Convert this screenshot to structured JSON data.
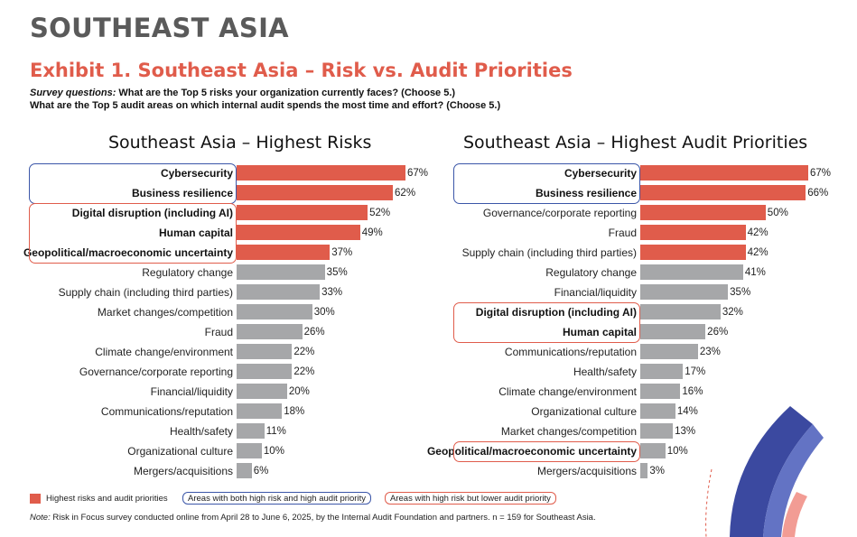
{
  "header": {
    "region": "SOUTHEAST ASIA",
    "exhibit_title": "Exhibit 1. Southeast Asia – Risk vs. Audit Priorities",
    "survey_lead": "Survey questions:",
    "survey_q1": " What are the Top 5 risks your organization currently faces? (Choose 5.)",
    "survey_q2": "What are the Top 5 audit areas on which internal audit spends the most time and effort? (Choose 5.)"
  },
  "colors": {
    "highlight": "#e05c4b",
    "default": "#a6a7a9",
    "blue_box": "#3b56a8",
    "red_box": "#e05c4b"
  },
  "chart_data": [
    {
      "type": "bar",
      "orientation": "horizontal",
      "title": "Southeast Asia – Highest Risks",
      "xlim": [
        0,
        67
      ],
      "unit": "%",
      "categories": [
        "Cybersecurity",
        "Business resilience",
        "Digital disruption (including AI)",
        "Human capital",
        "Geopolitical/macroeconomic uncertainty",
        "Regulatory change",
        "Supply chain (including third parties)",
        "Market changes/competition",
        "Fraud",
        "Climate change/environment",
        "Governance/corporate reporting",
        "Financial/liquidity",
        "Communications/reputation",
        "Health/safety",
        "Organizational culture",
        "Mergers/acquisitions"
      ],
      "values": [
        67,
        62,
        52,
        49,
        37,
        35,
        33,
        30,
        26,
        22,
        22,
        20,
        18,
        11,
        10,
        6
      ],
      "value_labels": [
        "67%",
        "62%",
        "52%",
        "49%",
        "37%",
        "35%",
        "33%",
        "30%",
        "26%",
        "22%",
        "22%",
        "20%",
        "18%",
        "11%",
        "10%",
        "6%"
      ],
      "highlighted": [
        true,
        true,
        true,
        true,
        true,
        false,
        false,
        false,
        false,
        false,
        false,
        false,
        false,
        false,
        false,
        false
      ],
      "bold": [
        true,
        true,
        true,
        true,
        true,
        false,
        false,
        false,
        false,
        false,
        false,
        false,
        false,
        false,
        false,
        false
      ],
      "boxes": [
        {
          "style": "blue",
          "from": 0,
          "to": 1
        },
        {
          "style": "red",
          "from": 2,
          "to": 4
        }
      ]
    },
    {
      "type": "bar",
      "orientation": "horizontal",
      "title": "Southeast Asia – Highest Audit Priorities",
      "xlim": [
        0,
        67
      ],
      "unit": "%",
      "categories": [
        "Cybersecurity",
        "Business resilience",
        "Governance/corporate reporting",
        "Fraud",
        "Supply chain (including third parties)",
        "Regulatory change",
        "Financial/liquidity",
        "Digital disruption (including AI)",
        "Human capital",
        "Communications/reputation",
        "Health/safety",
        "Climate change/environment",
        "Organizational culture",
        "Market changes/competition",
        "Geopolitical/macroeconomic uncertainty",
        "Mergers/acquisitions"
      ],
      "values": [
        67,
        66,
        50,
        42,
        42,
        41,
        35,
        32,
        26,
        23,
        17,
        16,
        14,
        13,
        10,
        3
      ],
      "value_labels": [
        "67%",
        "66%",
        "50%",
        "42%",
        "42%",
        "41%",
        "35%",
        "32%",
        "26%",
        "23%",
        "17%",
        "16%",
        "14%",
        "13%",
        "10%",
        "3%"
      ],
      "highlighted": [
        true,
        true,
        true,
        true,
        true,
        false,
        false,
        false,
        false,
        false,
        false,
        false,
        false,
        false,
        false,
        false
      ],
      "bold": [
        true,
        true,
        false,
        false,
        false,
        false,
        false,
        true,
        true,
        false,
        false,
        false,
        false,
        false,
        true,
        false
      ],
      "boxes": [
        {
          "style": "blue",
          "from": 0,
          "to": 1
        },
        {
          "style": "red",
          "from": 7,
          "to": 8
        },
        {
          "style": "red",
          "from": 14,
          "to": 14
        }
      ]
    }
  ],
  "legend": {
    "swatch_label": "Highest risks and audit priorities",
    "blue_box_label": "Areas with both high risk and high audit priority",
    "red_box_label": "Areas with high risk but lower audit priority"
  },
  "note": {
    "lead": "Note:",
    "text": " Risk in Focus survey conducted online from April 28 to June 6, 2025, by the Internal Audit Foundation and partners. n = 159 for Southeast Asia."
  }
}
